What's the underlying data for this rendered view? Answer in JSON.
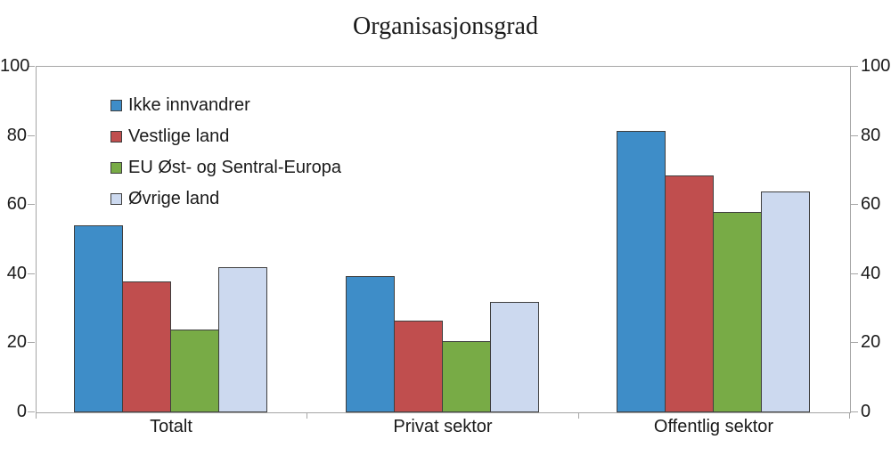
{
  "chart_data": {
    "type": "bar",
    "title": "Organisasjonsgrad",
    "categories": [
      "Totalt",
      "Privat sektor",
      "Offentlig sektor"
    ],
    "series": [
      {
        "name": "Ikke innvandrer",
        "color": "#3e8dc8",
        "values": [
          54,
          39.5,
          81.5
        ]
      },
      {
        "name": "Vestlige land",
        "color": "#c04e4e",
        "values": [
          38,
          26.5,
          68.5
        ]
      },
      {
        "name": "EU Øst- og Sentral-Europa",
        "color": "#78ab46",
        "values": [
          24,
          20.5,
          58
        ]
      },
      {
        "name": "Øvrige land",
        "color": "#ccd9ef",
        "values": [
          42,
          32,
          64
        ]
      }
    ],
    "ylim": [
      0,
      100
    ],
    "yticks": [
      0,
      20,
      40,
      60,
      80,
      100
    ],
    "axis_sides": [
      "left",
      "right"
    ],
    "grid": false,
    "legend_position": "top-left-inside",
    "colors": {
      "axis_line": "#a6a6a6",
      "bar_border": "#3f3f3f",
      "text": "#1a1a1a"
    }
  }
}
